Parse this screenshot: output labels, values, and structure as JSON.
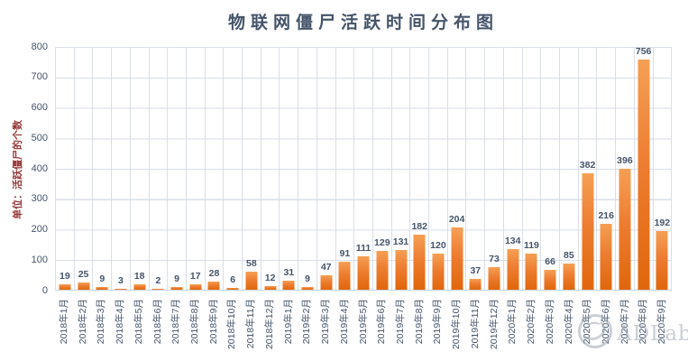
{
  "page": {
    "background": "#FFFFFF"
  },
  "chart_data": {
    "type": "bar",
    "title": "物联网僵尸活跃时间分布图",
    "ylabel": "单位：活跃僵尸的个数",
    "xlabel": "",
    "categories": [
      "2018年1月",
      "2018年2月",
      "2018年3月",
      "2018年4月",
      "2018年5月",
      "2018年6月",
      "2018年7月",
      "2018年8月",
      "2018年9月",
      "2018年10月",
      "2018年11月",
      "2018年12月",
      "2019年1月",
      "2019年2月",
      "2019年3月",
      "2019年4月",
      "2019年5月",
      "2019年6月",
      "2019年7月",
      "2019年8月",
      "2019年9月",
      "2019年10月",
      "2019年11月",
      "2019年12月",
      "2020年1月",
      "2020年2月",
      "2020年3月",
      "2020年4月",
      "2020年5月",
      "2020年6月",
      "2020年7月",
      "2020年8月",
      "2020年9月"
    ],
    "values": [
      19,
      25,
      9,
      3,
      18,
      2,
      9,
      17,
      28,
      6,
      58,
      12,
      31,
      9,
      47,
      91,
      111,
      129,
      131,
      182,
      120,
      204,
      37,
      73,
      134,
      119,
      66,
      85,
      382,
      216,
      396,
      756,
      192
    ],
    "ylim": [
      0,
      800
    ],
    "ytick_labels": [
      "0",
      "100",
      "200",
      "300",
      "400",
      "500",
      "600",
      "700",
      "800"
    ],
    "grid": "on",
    "legend": "none",
    "data_labels": "on",
    "colors": {
      "bar_top": "#F5A055",
      "bar_bottom": "#E0660B",
      "title_text": "#44546A",
      "axis_text": "#44546A",
      "ylabel_text": "#953735",
      "gridline": "#D8DEE9"
    }
  },
  "watermark": {
    "text": "ADLab",
    "logo": "circular-emblem",
    "color": "#9FA8B4"
  }
}
